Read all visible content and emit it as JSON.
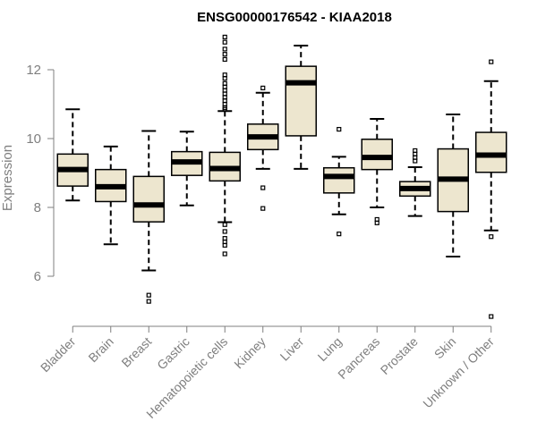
{
  "chart_data": {
    "type": "boxplot",
    "title": "ENSG00000176542 - KIAA2018",
    "xlabel": "",
    "ylabel": "Expression",
    "ylim": [
      4.7,
      13.0
    ],
    "yticks": [
      6,
      8,
      10,
      12
    ],
    "box_fill": "#ede6cf",
    "categories": [
      "Bladder",
      "Brain",
      "Breast",
      "Gastric",
      "Hematopoietic cells",
      "Kidney",
      "Liver",
      "Lung",
      "Pancreas",
      "Prostate",
      "Skin",
      "Unknown / Other"
    ],
    "boxes": [
      {
        "name": "Bladder",
        "whisker_low": 8.2,
        "q1": 8.62,
        "median": 9.1,
        "q3": 9.55,
        "whisker_high": 10.85,
        "outliers": []
      },
      {
        "name": "Brain",
        "whisker_low": 6.93,
        "q1": 8.17,
        "median": 8.6,
        "q3": 9.1,
        "whisker_high": 9.77,
        "outliers": []
      },
      {
        "name": "Breast",
        "whisker_low": 6.17,
        "q1": 7.58,
        "median": 8.07,
        "q3": 8.9,
        "whisker_high": 10.22,
        "outliers": [
          5.45,
          5.27
        ]
      },
      {
        "name": "Gastric",
        "whisker_low": 8.06,
        "q1": 8.93,
        "median": 9.32,
        "q3": 9.62,
        "whisker_high": 10.2,
        "outliers": []
      },
      {
        "name": "Hematopoietic cells",
        "whisker_low": 7.57,
        "q1": 8.77,
        "median": 9.13,
        "q3": 9.6,
        "whisker_high": 10.8,
        "outliers": [
          12.95,
          12.8,
          12.6,
          12.45,
          12.3,
          11.85,
          11.75,
          11.6,
          11.5,
          11.4,
          11.3,
          11.2,
          11.1,
          11.0,
          10.9,
          10.85,
          7.5,
          7.3,
          7.1,
          7.0,
          6.9,
          6.65
        ]
      },
      {
        "name": "Kidney",
        "whisker_low": 9.12,
        "q1": 9.68,
        "median": 10.05,
        "q3": 10.42,
        "whisker_high": 11.33,
        "outliers": [
          11.47,
          8.57,
          7.97
        ]
      },
      {
        "name": "Liver",
        "whisker_low": 9.12,
        "q1": 10.08,
        "median": 11.62,
        "q3": 12.1,
        "whisker_high": 12.7,
        "outliers": []
      },
      {
        "name": "Lung",
        "whisker_low": 7.8,
        "q1": 8.42,
        "median": 8.9,
        "q3": 9.15,
        "whisker_high": 9.47,
        "outliers": [
          10.27,
          7.23
        ]
      },
      {
        "name": "Pancreas",
        "whisker_low": 8.0,
        "q1": 9.1,
        "median": 9.45,
        "q3": 9.98,
        "whisker_high": 10.57,
        "outliers": [
          7.65,
          7.55
        ]
      },
      {
        "name": "Prostate",
        "whisker_low": 7.75,
        "q1": 8.33,
        "median": 8.55,
        "q3": 8.75,
        "whisker_high": 9.17,
        "outliers": [
          9.65,
          9.55,
          9.45,
          9.35
        ]
      },
      {
        "name": "Skin",
        "whisker_low": 6.57,
        "q1": 7.88,
        "median": 8.82,
        "q3": 9.7,
        "whisker_high": 10.7,
        "outliers": []
      },
      {
        "name": "Unknown / Other",
        "whisker_low": 7.33,
        "q1": 9.02,
        "median": 9.52,
        "q3": 10.18,
        "whisker_high": 11.67,
        "outliers": [
          12.23,
          7.15,
          4.83
        ]
      }
    ]
  }
}
